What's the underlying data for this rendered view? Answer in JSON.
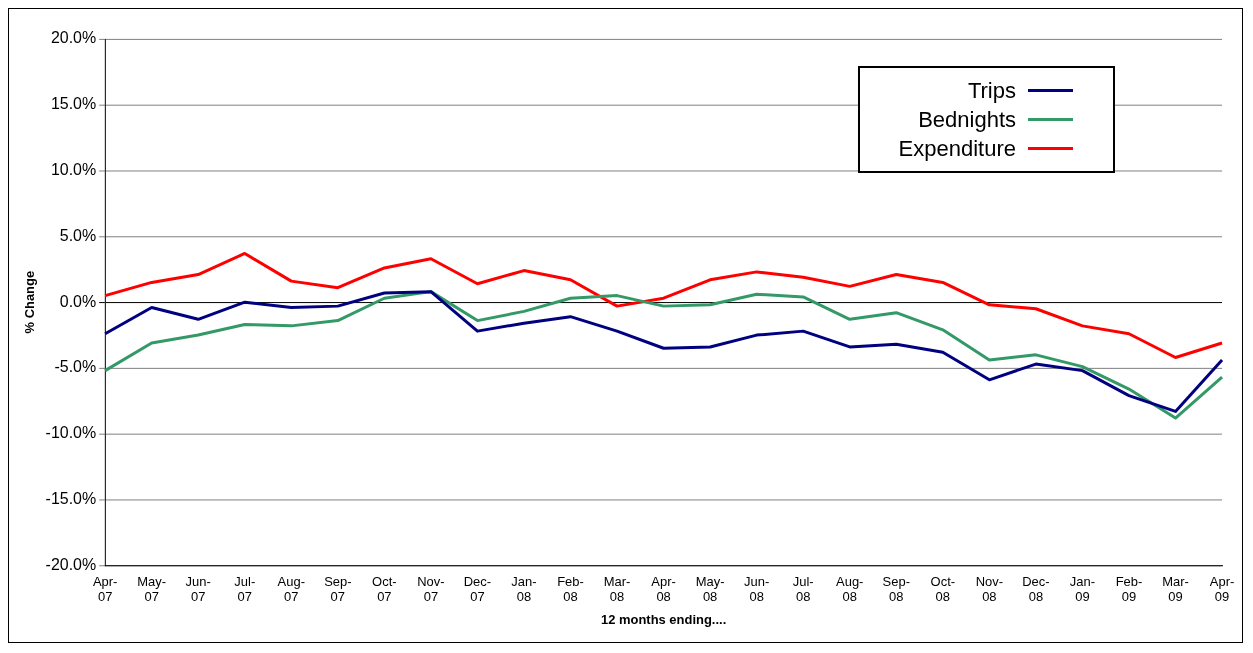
{
  "chart_data": {
    "type": "line",
    "xlabel": "12 months ending....",
    "ylabel": "% Change",
    "categories": [
      "Apr-07",
      "May-07",
      "Jun-07",
      "Jul-07",
      "Aug-07",
      "Sep-07",
      "Oct-07",
      "Nov-07",
      "Dec-07",
      "Jan-08",
      "Feb-08",
      "Mar-08",
      "Apr-08",
      "May-08",
      "Jun-08",
      "Jul-08",
      "Aug-08",
      "Sep-08",
      "Oct-08",
      "Nov-08",
      "Dec-08",
      "Jan-09",
      "Feb-09",
      "Mar-09",
      "Apr-09"
    ],
    "series": [
      {
        "name": "Trips",
        "color": "#000080",
        "values": [
          -2.4,
          -0.4,
          -1.3,
          0.0,
          -0.4,
          -0.3,
          0.7,
          0.8,
          -2.2,
          -1.6,
          -1.1,
          -2.2,
          -3.5,
          -3.4,
          -2.5,
          -2.2,
          -3.4,
          -3.2,
          -3.8,
          -5.9,
          -4.7,
          -5.2,
          -7.1,
          -8.3,
          -4.4
        ]
      },
      {
        "name": "Bednights",
        "color": "#339966",
        "values": [
          -5.2,
          -3.1,
          -2.5,
          -1.7,
          -1.8,
          -1.4,
          0.3,
          0.8,
          -1.4,
          -0.7,
          0.3,
          0.5,
          -0.3,
          -0.2,
          0.6,
          0.4,
          -1.3,
          -0.8,
          -2.1,
          -4.4,
          -4.0,
          -4.9,
          -6.6,
          -8.8,
          -5.7
        ]
      },
      {
        "name": "Expenditure",
        "color": "#ff0000",
        "values": [
          0.5,
          1.5,
          2.1,
          3.7,
          1.6,
          1.1,
          2.6,
          3.3,
          1.4,
          2.4,
          1.7,
          -0.3,
          0.3,
          1.7,
          2.3,
          1.9,
          1.2,
          2.1,
          1.5,
          -0.2,
          -0.5,
          -1.8,
          -2.4,
          -4.2,
          -3.1
        ]
      }
    ],
    "ylim": [
      -20,
      20
    ],
    "yticks": [
      {
        "value": -20,
        "label": "-20.0%"
      },
      {
        "value": -15,
        "label": "-15.0%"
      },
      {
        "value": -10,
        "label": "-10.0%"
      },
      {
        "value": -5,
        "label": "-5.0%"
      },
      {
        "value": 0,
        "label": "0.0%"
      },
      {
        "value": 5,
        "label": "5.0%"
      },
      {
        "value": 10,
        "label": "10.0%"
      },
      {
        "value": 15,
        "label": "15.0%"
      },
      {
        "value": 20,
        "label": "20.0%"
      }
    ],
    "grid": "y",
    "legend": "top right",
    "marker": "none",
    "line_style": "solid"
  }
}
